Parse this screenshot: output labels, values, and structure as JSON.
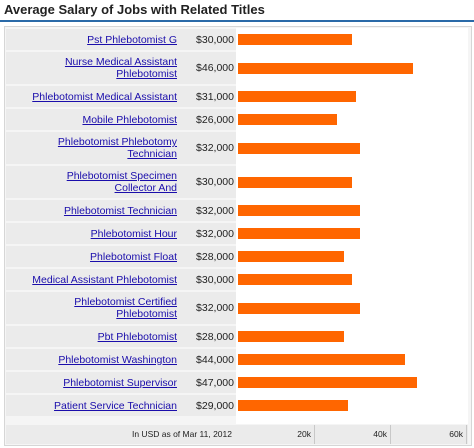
{
  "title": "Average Salary of Jobs with Related Titles",
  "colors": {
    "bar": "#ff6600",
    "link": "#1a0dab",
    "rule": "#2a6aa8"
  },
  "chart_data": {
    "type": "bar",
    "orientation": "horizontal",
    "categories": [
      "Pst Phlebotomist G",
      "Nurse Medical Assistant Phlebotomist",
      "Phlebotomist Medical Assistant",
      "Mobile Phlebotomist",
      "Phlebotomist Phlebotomy Technician",
      "Phlebotomist Specimen Collector And",
      "Phlebotomist Technician",
      "Phlebotomist Hour",
      "Phlebotomist Float",
      "Medical Assistant Phlebotomist",
      "Phlebotomist Certified Phlebotomist",
      "Pbt Phlebotomist",
      "Phlebotomist Washington",
      "Phlebotomist Supervisor",
      "Patient Service Technician"
    ],
    "values": [
      30000,
      46000,
      31000,
      26000,
      32000,
      30000,
      32000,
      32000,
      28000,
      30000,
      32000,
      28000,
      44000,
      47000,
      29000
    ],
    "value_labels": [
      "$30,000",
      "$46,000",
      "$31,000",
      "$26,000",
      "$32,000",
      "$30,000",
      "$32,000",
      "$32,000",
      "$28,000",
      "$30,000",
      "$32,000",
      "$28,000",
      "$44,000",
      "$47,000",
      "$29,000"
    ],
    "xlim": [
      0,
      60000
    ],
    "ticks": [
      {
        "value": 20000,
        "label": "20k"
      },
      {
        "value": 40000,
        "label": "40k"
      },
      {
        "value": 60000,
        "label": "60k"
      }
    ],
    "axis_note": "In USD as of Mar 11, 2012"
  }
}
